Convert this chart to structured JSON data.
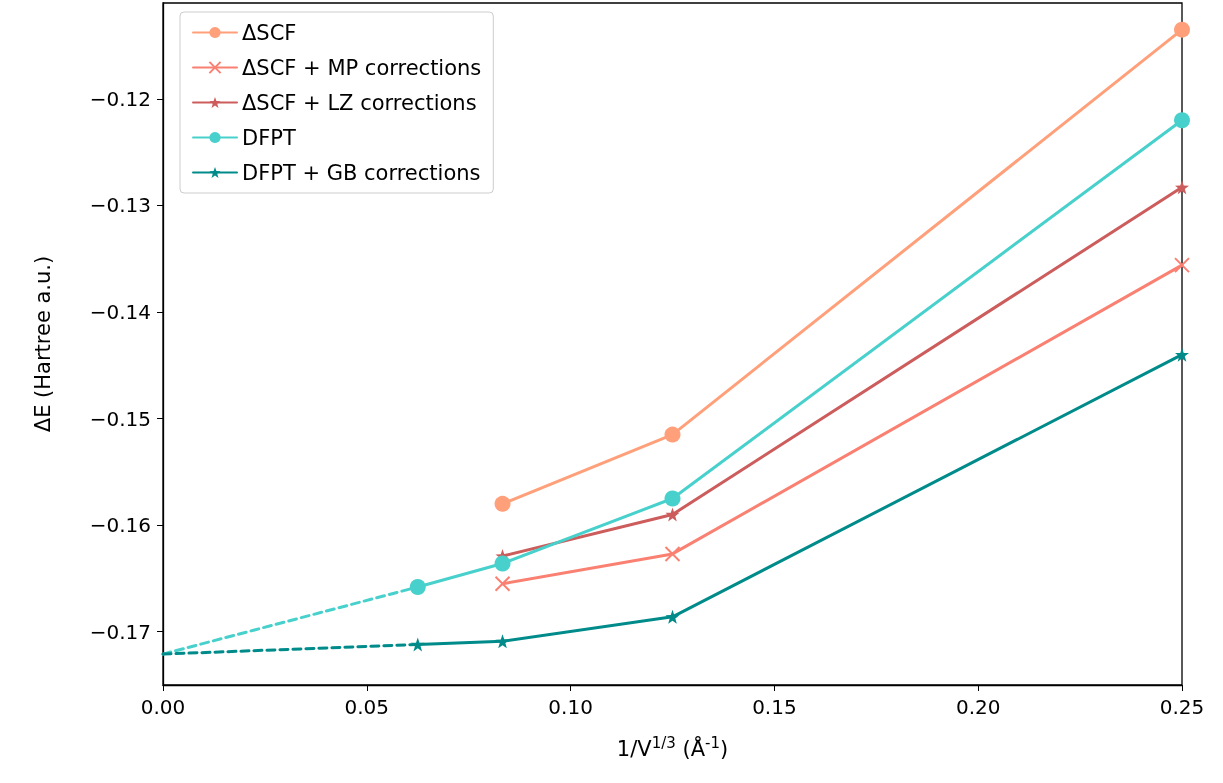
{
  "chart_data": {
    "type": "line",
    "xlabel": "1/V$^{1/3}$ (Å$^{-1}$)",
    "ylabel": "ΔE (Hartree a.u.)",
    "xlim": [
      0,
      0.25
    ],
    "ylim": [
      -0.175,
      -0.111
    ],
    "xticks": [
      {
        "value": 0,
        "label": "0.00"
      },
      0.05,
      {
        "value": 0.1,
        "label": "0.10"
      },
      0.15,
      {
        "value": 0.2,
        "label": "0.20"
      },
      0.25
    ],
    "yticks": [
      {
        "value": -0.17,
        "label": "−0.17"
      },
      {
        "value": -0.16,
        "label": "−0.16"
      },
      {
        "value": -0.15,
        "label": "−0.15"
      },
      {
        "value": -0.14,
        "label": "−0.14"
      },
      {
        "value": -0.13,
        "label": "−0.13"
      },
      {
        "value": -0.12,
        "label": "−0.12"
      }
    ],
    "grid": false,
    "legend": "top left",
    "series": [
      {
        "name": "ΔSCF",
        "color": "#ffa07a",
        "marker": "circle",
        "line_style": "solid",
        "x": [
          0.0833,
          0.125,
          0.25
        ],
        "values": [
          -0.158,
          -0.1515,
          -0.1135
        ]
      },
      {
        "name": "ΔSCF + MP corrections",
        "color": "#fa8072",
        "marker": "cross",
        "line_style": "solid",
        "x": [
          0.0833,
          0.125,
          0.25
        ],
        "values": [
          -0.1655,
          -0.1627,
          -0.1356
        ]
      },
      {
        "name": "ΔSCF + LZ corrections",
        "color": "#cd5c5c",
        "marker": "star",
        "line_style": "solid",
        "x": [
          0.0833,
          0.125,
          0.25
        ],
        "values": [
          -0.1629,
          -0.159,
          -0.1283
        ]
      },
      {
        "name": "DFPT",
        "color": "#48d1cc",
        "marker": "circle",
        "line_style": "solid",
        "x": [
          0.0625,
          0.0833,
          0.125,
          0.25
        ],
        "values": [
          -0.1658,
          -0.1636,
          -0.1575,
          -0.122
        ]
      },
      {
        "name": "DFPT + GB corrections",
        "color": "#008b8b",
        "marker": "star",
        "line_style": "solid",
        "x": [
          0.0625,
          0.0833,
          0.125,
          0.25
        ],
        "values": [
          -0.1712,
          -0.1709,
          -0.1686,
          -0.144
        ]
      },
      {
        "color": "#48d1cc",
        "marker": "none",
        "line_style": "dashed",
        "x": [
          0,
          0.0625
        ],
        "values": [
          -0.1721,
          -0.1658
        ]
      },
      {
        "color": "#008b8b",
        "marker": "none",
        "line_style": "dashed",
        "x": [
          0,
          0.0625
        ],
        "values": [
          -0.1721,
          -0.1712
        ]
      }
    ]
  }
}
